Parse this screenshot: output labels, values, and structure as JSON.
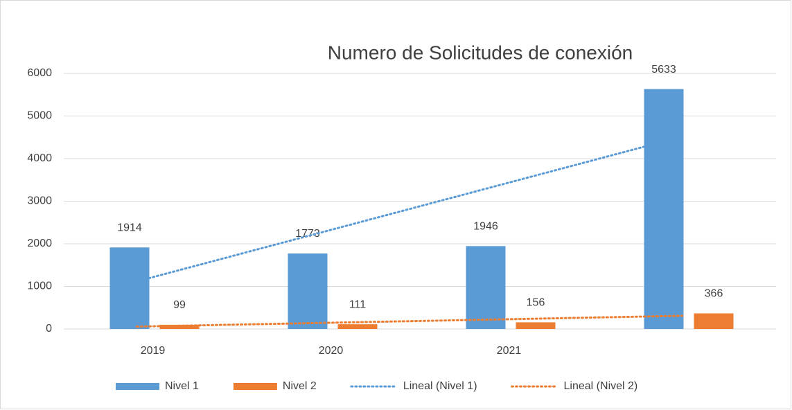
{
  "chart_data": {
    "type": "bar",
    "title": "Numero de Solicitudes de conexión",
    "categories": [
      "2019",
      "2020",
      "2021",
      null
    ],
    "series": [
      {
        "name": "Nivel 1",
        "color": "#5b9bd5",
        "values": [
          1914,
          1773,
          1946,
          5633
        ]
      },
      {
        "name": "Nivel 2",
        "color": "#ed7d31",
        "values": [
          99,
          111,
          156,
          366
        ]
      }
    ],
    "trendlines": [
      {
        "name": "Lineal (Nivel 1)",
        "series": 0,
        "kind": "linear",
        "color": "#5b9bd5"
      },
      {
        "name": "Lineal (Nivel 2)",
        "series": 1,
        "kind": "linear",
        "color": "#ed7d31"
      }
    ],
    "ylim": [
      0,
      6000
    ],
    "yticks": [
      0,
      1000,
      2000,
      3000,
      4000,
      5000,
      6000
    ],
    "grid": true,
    "legend": "bottom"
  }
}
